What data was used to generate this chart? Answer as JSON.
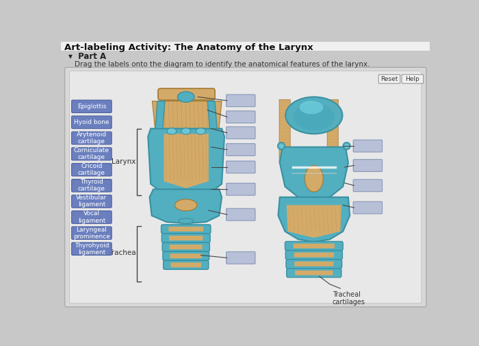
{
  "title": "Art-labeling Activity: The Anatomy of the Larynx",
  "part": "Part A",
  "instruction": "Drag the labels onto the diagram to identify the anatomical features of the larynx.",
  "bg_color": "#c8c8c8",
  "outer_panel_bg": "#d8d8d8",
  "inner_panel_bg": "#e8e8e8",
  "diagram_bg": "#f0f0f0",
  "label_bg": "#6b7fbf",
  "label_text_color": "#ffffff",
  "label_border_color": "#4a5fa0",
  "answer_box_color": "#b8c0d8",
  "answer_box_border": "#8898b8",
  "left_labels": [
    "Epiglottis",
    "Hyoid bone",
    "Arytenoid\ncartilage",
    "Corniculate\ncartilage",
    "Cricoid\ncartilage",
    "Thyroid\ncartilage",
    "Vestibular\nligament",
    "Vocal\nligament",
    "Laryngeal\nprominence",
    "Thyrohyoid\nligament"
  ],
  "line_color": "#444444",
  "larynx_label": "Larynx",
  "trachea_label": "Trachea",
  "tracheal_cartilages_label": "Tracheal\ncartilages",
  "button_reset": "Reset",
  "button_help": "Help",
  "teal_light": "#6ec6d4",
  "teal_mid": "#52afc0",
  "teal_dark": "#3a90a0",
  "tan_light": "#d4aa68",
  "tan_mid": "#c09050",
  "tan_dark": "#a07830"
}
